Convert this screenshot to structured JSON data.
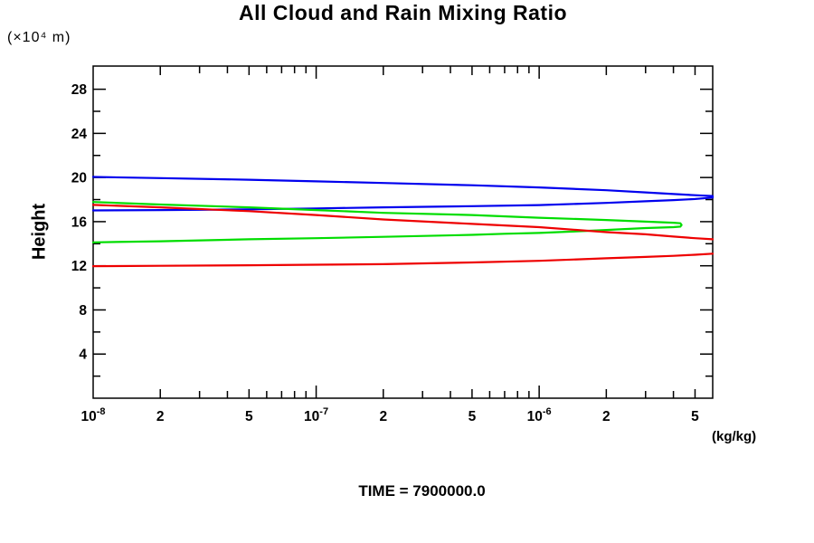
{
  "page": {
    "background": "#ffffff"
  },
  "chart_data": {
    "type": "line",
    "title": "All Cloud and Rain Mixing Ratio",
    "time_label": "TIME = 7900000.0",
    "grid": false,
    "legend": "none",
    "frame_color": "#000000",
    "x_axis": {
      "label": "(kg/kg)",
      "scale": "log",
      "range": [
        1e-08,
        6e-06
      ],
      "decade_exponents": [
        -8,
        -7,
        -6
      ],
      "labeled_ticks": [
        {
          "value": 1e-08,
          "base": "10",
          "sup": "-8"
        },
        {
          "value": 2e-08,
          "base": "2",
          "sup": ""
        },
        {
          "value": 5e-08,
          "base": "5",
          "sup": ""
        },
        {
          "value": 1e-07,
          "base": "10",
          "sup": "-7"
        },
        {
          "value": 2e-07,
          "base": "2",
          "sup": ""
        },
        {
          "value": 5e-07,
          "base": "5",
          "sup": ""
        },
        {
          "value": 1e-06,
          "base": "10",
          "sup": "-6"
        },
        {
          "value": 2e-06,
          "base": "2",
          "sup": ""
        },
        {
          "value": 5e-06,
          "base": "5",
          "sup": ""
        }
      ]
    },
    "y_axis": {
      "label": "Height",
      "unit_label": "(×10⁴ m)",
      "range": [
        0,
        30.1
      ],
      "tick_step": 2,
      "labeled_ticks": [
        4,
        8,
        12,
        16,
        20,
        24,
        28
      ]
    },
    "series": [
      {
        "name": "blue-profile",
        "color": "#0000ee",
        "paths": [
          [
            [
              1e-08,
              20.05
            ],
            [
              2e-08,
              19.95
            ],
            [
              5e-08,
              19.8
            ],
            [
              1e-07,
              19.65
            ],
            [
              2e-07,
              19.5
            ],
            [
              5e-07,
              19.3
            ],
            [
              1e-06,
              19.1
            ],
            [
              2e-06,
              18.85
            ],
            [
              3e-06,
              18.65
            ],
            [
              4e-06,
              18.5
            ],
            [
              5e-06,
              18.4
            ],
            [
              6e-06,
              18.32
            ],
            [
              6e-06,
              18.18
            ],
            [
              5e-06,
              18.05
            ],
            [
              4e-06,
              17.95
            ],
            [
              3e-06,
              17.85
            ],
            [
              2e-06,
              17.7
            ],
            [
              1e-06,
              17.5
            ],
            [
              5e-07,
              17.4
            ],
            [
              2e-07,
              17.3
            ],
            [
              1e-07,
              17.2
            ],
            [
              5e-08,
              17.12
            ],
            [
              2e-08,
              17.05
            ],
            [
              1e-08,
              17.02
            ]
          ]
        ]
      },
      {
        "name": "green-profile",
        "color": "#00dd00",
        "paths": [
          [
            [
              1e-08,
              17.78
            ],
            [
              2e-08,
              17.55
            ],
            [
              5e-08,
              17.3
            ],
            [
              1e-07,
              17.05
            ],
            [
              2e-07,
              16.8
            ],
            [
              5e-07,
              16.6
            ],
            [
              1e-06,
              16.35
            ],
            [
              2e-06,
              16.15
            ],
            [
              3e-06,
              16.0
            ],
            [
              4e-06,
              15.9
            ],
            [
              4.3e-06,
              15.85
            ],
            [
              4.35e-06,
              15.7
            ],
            [
              4.3e-06,
              15.55
            ],
            [
              4e-06,
              15.5
            ],
            [
              3e-06,
              15.42
            ],
            [
              2e-06,
              15.25
            ],
            [
              1.4e-06,
              15.1
            ],
            [
              1e-06,
              14.98
            ],
            [
              7e-07,
              14.9
            ],
            [
              5e-07,
              14.8
            ],
            [
              2e-07,
              14.62
            ],
            [
              1e-07,
              14.5
            ],
            [
              5e-08,
              14.4
            ],
            [
              2e-08,
              14.22
            ],
            [
              1e-08,
              14.12
            ]
          ]
        ]
      },
      {
        "name": "red-profile",
        "color": "#ee0000",
        "paths": [
          [
            [
              1e-08,
              17.52
            ],
            [
              2e-08,
              17.3
            ],
            [
              5e-08,
              16.95
            ],
            [
              1e-07,
              16.6
            ],
            [
              2e-07,
              16.2
            ],
            [
              5e-07,
              15.8
            ],
            [
              1e-06,
              15.5
            ],
            [
              2e-06,
              15.05
            ],
            [
              3e-06,
              14.85
            ],
            [
              4e-06,
              14.65
            ],
            [
              5e-06,
              14.5
            ],
            [
              6e-06,
              14.4
            ]
          ],
          [
            [
              6e-06,
              13.1
            ],
            [
              5e-06,
              13.0
            ],
            [
              4e-06,
              12.9
            ],
            [
              3e-06,
              12.8
            ],
            [
              2e-06,
              12.68
            ],
            [
              1e-06,
              12.45
            ],
            [
              5e-07,
              12.3
            ],
            [
              2e-07,
              12.15
            ],
            [
              1e-07,
              12.1
            ],
            [
              5e-08,
              12.05
            ],
            [
              2e-08,
              12.0
            ],
            [
              1e-08,
              11.97
            ]
          ]
        ]
      }
    ]
  }
}
